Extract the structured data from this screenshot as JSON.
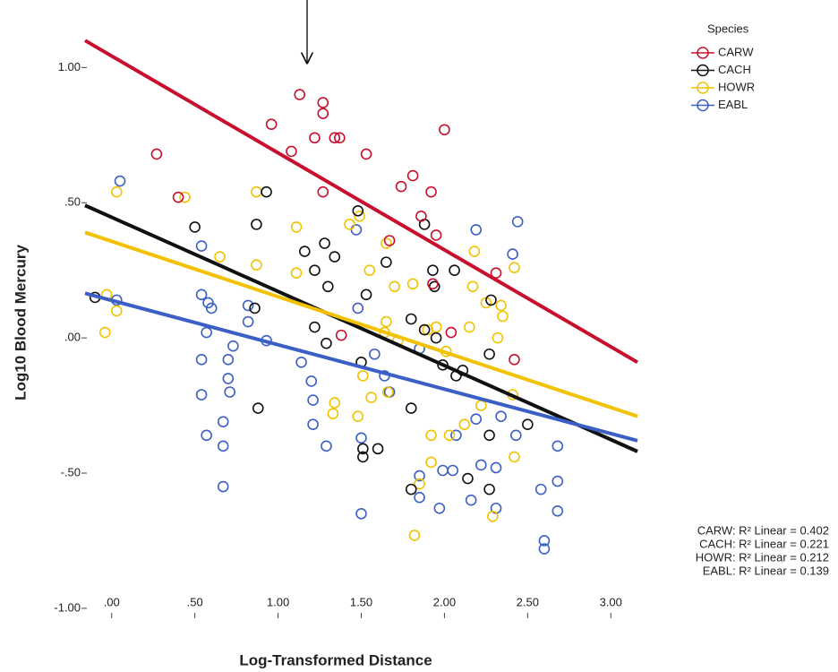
{
  "chart_data": {
    "type": "scatter",
    "x_label": "Log-Transformed Distance",
    "y_label": "Log10 Blood Mercury",
    "xlim": [
      -0.16,
      3.16
    ],
    "ylim": [
      -1.05,
      1.2
    ],
    "xticks": [
      {
        "value": 0,
        "label": ".00"
      },
      {
        "value": 0.5,
        "label": ".50"
      },
      {
        "value": 1,
        "label": "1.00"
      },
      {
        "value": 1.5,
        "label": "1.50"
      },
      {
        "value": 2,
        "label": "2.00"
      },
      {
        "value": 2.5,
        "label": "2.50"
      },
      {
        "value": 3,
        "label": "3.00"
      }
    ],
    "yticks": [
      {
        "value": -1,
        "label": "-1.00"
      },
      {
        "value": -0.5,
        "label": "-.50"
      },
      {
        "value": 0,
        "label": ".00"
      },
      {
        "value": 0.5,
        "label": ".50"
      },
      {
        "value": 1,
        "label": "1.00"
      }
    ],
    "legend_title": "Species",
    "legend_position": "top-right",
    "annotations": [
      "CARW: R² Linear = 0.402",
      "CACH: R² Linear = 0.221",
      "HOWR: R² Linear = 0.212",
      "EABL: R² Linear = 0.139"
    ],
    "series": [
      {
        "name": "CARW",
        "color": "#c8102e",
        "x": [
          1.13,
          1.27,
          1.27,
          0.96,
          1.08,
          1.22,
          1.34,
          1.37,
          1.53,
          0.27,
          0.4,
          1.27,
          2.0,
          1.74,
          1.81,
          1.92,
          1.86,
          1.95,
          1.93,
          2.04,
          2.31,
          2.42,
          1.38,
          1.67
        ],
        "y": [
          0.9,
          0.87,
          0.83,
          0.79,
          0.69,
          0.74,
          0.74,
          0.74,
          0.68,
          0.68,
          0.52,
          0.54,
          0.77,
          0.56,
          0.6,
          0.54,
          0.45,
          0.38,
          0.2,
          0.02,
          0.24,
          -0.08,
          0.01,
          0.36
        ],
        "fit_x": [
          -0.16,
          3.16
        ],
        "fit_y": [
          1.1,
          -0.09
        ]
      },
      {
        "name": "CACH",
        "color": "#111111",
        "x": [
          -0.1,
          0.5,
          0.93,
          0.87,
          0.86,
          0.88,
          1.16,
          1.22,
          1.28,
          1.3,
          1.34,
          1.48,
          1.53,
          1.29,
          1.22,
          1.65,
          1.88,
          1.93,
          1.94,
          1.8,
          1.88,
          1.95,
          1.8,
          1.8,
          2.06,
          1.99,
          2.11,
          2.07,
          2.14,
          2.27,
          2.27,
          2.27,
          2.28,
          2.5,
          1.51,
          1.6,
          1.51,
          1.5
        ],
        "y": [
          0.15,
          0.41,
          0.54,
          0.42,
          0.11,
          -0.26,
          0.32,
          0.25,
          0.35,
          0.19,
          0.3,
          0.47,
          0.16,
          -0.02,
          0.04,
          0.28,
          0.42,
          0.25,
          0.19,
          0.07,
          0.03,
          0.0,
          -0.26,
          -0.56,
          0.25,
          -0.1,
          -0.12,
          -0.14,
          -0.52,
          -0.36,
          -0.56,
          -0.06,
          0.14,
          -0.32,
          -0.41,
          -0.41,
          -0.44,
          -0.09
        ],
        "fit_x": [
          -0.16,
          3.16
        ],
        "fit_y": [
          0.49,
          -0.42
        ]
      },
      {
        "name": "HOWR",
        "color": "#f2c200",
        "x": [
          0.03,
          0.03,
          -0.04,
          -0.03,
          0.44,
          0.65,
          0.87,
          0.87,
          1.11,
          1.11,
          1.43,
          1.49,
          1.55,
          1.65,
          1.7,
          1.81,
          1.72,
          1.64,
          1.65,
          1.9,
          1.95,
          2.01,
          1.51,
          1.56,
          1.66,
          1.34,
          1.33,
          1.92,
          1.92,
          2.03,
          2.15,
          2.17,
          2.18,
          2.25,
          2.34,
          2.35,
          2.32,
          2.22,
          2.29,
          1.82,
          1.85,
          2.42,
          2.41,
          2.42,
          2.12,
          1.48
        ],
        "y": [
          0.54,
          0.1,
          0.02,
          0.16,
          0.52,
          0.3,
          0.54,
          0.27,
          0.41,
          0.24,
          0.42,
          0.45,
          0.25,
          0.35,
          0.19,
          0.2,
          -0.01,
          0.02,
          0.06,
          0.03,
          0.04,
          -0.05,
          -0.14,
          -0.22,
          -0.2,
          -0.24,
          -0.28,
          -0.36,
          -0.46,
          -0.36,
          0.04,
          0.19,
          0.32,
          0.13,
          0.12,
          0.08,
          0.0,
          -0.25,
          -0.66,
          -0.73,
          -0.54,
          0.26,
          -0.21,
          -0.44,
          -0.32,
          -0.29
        ],
        "fit_x": [
          -0.16,
          3.16
        ],
        "fit_y": [
          0.39,
          -0.29
        ]
      },
      {
        "name": "EABL",
        "color": "#3b5fc4",
        "x": [
          0.05,
          0.03,
          0.54,
          0.54,
          0.58,
          0.6,
          0.57,
          0.54,
          0.54,
          0.57,
          0.67,
          0.67,
          0.67,
          0.7,
          0.7,
          0.71,
          0.73,
          0.82,
          0.82,
          0.93,
          1.14,
          1.2,
          1.21,
          1.21,
          1.29,
          1.47,
          1.48,
          1.5,
          1.5,
          1.58,
          1.64,
          1.67,
          1.85,
          1.85,
          1.85,
          1.97,
          1.99,
          2.05,
          2.07,
          2.16,
          2.19,
          2.19,
          2.22,
          2.31,
          2.31,
          2.34,
          2.41,
          2.44,
          2.43,
          2.58,
          2.6,
          2.6,
          2.68,
          2.68,
          2.68
        ],
        "y": [
          0.58,
          0.14,
          0.34,
          0.16,
          0.13,
          0.11,
          0.02,
          -0.08,
          -0.21,
          -0.36,
          -0.31,
          -0.4,
          -0.55,
          -0.08,
          -0.15,
          -0.2,
          -0.03,
          0.06,
          0.12,
          -0.01,
          -0.09,
          -0.16,
          -0.23,
          -0.32,
          -0.4,
          0.4,
          0.11,
          -0.37,
          -0.65,
          -0.06,
          -0.14,
          -0.2,
          -0.04,
          -0.51,
          -0.59,
          -0.63,
          -0.49,
          -0.49,
          -0.36,
          -0.6,
          0.4,
          -0.3,
          -0.47,
          -0.48,
          -0.63,
          -0.29,
          0.31,
          0.43,
          -0.36,
          -0.56,
          -0.75,
          -0.78,
          -0.53,
          -0.64,
          -0.4
        ],
        "fit_x": [
          -0.16,
          3.16
        ],
        "fit_y": [
          0.165,
          -0.38
        ]
      }
    ]
  }
}
